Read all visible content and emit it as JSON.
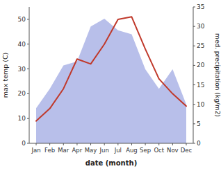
{
  "chart_data": {
    "type": "line",
    "categories": [
      "Jan",
      "Feb",
      "Mar",
      "Apr",
      "May",
      "Jun",
      "Jul",
      "Aug",
      "Sep",
      "Oct",
      "Nov",
      "Dec"
    ],
    "xlabel": "date (month)",
    "ylabel": "max temp (C)",
    "y2label": "med. precipitation (kg/m2)",
    "ylim": [
      0,
      55
    ],
    "yticks": [
      0,
      10,
      20,
      30,
      40,
      50
    ],
    "y2lim": [
      0,
      35
    ],
    "y2ticks": [
      0,
      5,
      10,
      15,
      20,
      25,
      30,
      35
    ],
    "series": [
      {
        "type": "area",
        "axis": "y2",
        "color": "#b0b8e8",
        "values": [
          9,
          14,
          20,
          21,
          30,
          32,
          29,
          28,
          19,
          14,
          19,
          10
        ]
      },
      {
        "type": "line",
        "color": "#c0392b",
        "values": [
          9,
          14,
          22,
          34,
          32,
          40,
          50,
          51,
          38,
          26,
          20,
          15
        ]
      }
    ]
  }
}
